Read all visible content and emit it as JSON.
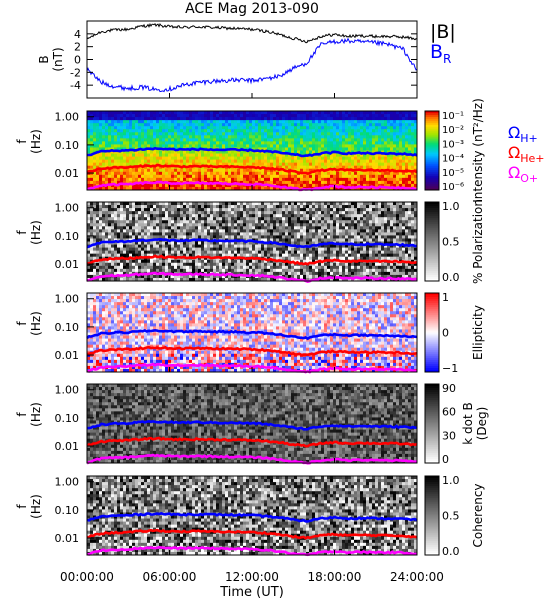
{
  "title": "ACE Mag 2013-090",
  "xaxis": {
    "label": "Time (UT)",
    "ticks": [
      "00:00:00",
      "06:00:00",
      "12:00:00",
      "18:00:00",
      "24:00:00"
    ],
    "range_hours": [
      0,
      24
    ]
  },
  "colors": {
    "bmag": "#000000",
    "br": "#0000ff",
    "h_plus": "#0000ff",
    "he_plus": "#ff0000",
    "o_plus": "#ff00ff"
  },
  "legend": {
    "bmag": "|B|",
    "br_main": "B",
    "br_sub": "R",
    "omega": "Ω",
    "h": "H+",
    "he": "He+",
    "o": "O+"
  },
  "chart_data": [
    {
      "type": "line",
      "panel": "field",
      "ylabel": "B",
      "yunit": "(nT)",
      "ylim": [
        -6,
        6
      ],
      "yticks": [
        "4",
        "2",
        "0",
        "-2",
        "-4"
      ],
      "x": [
        0,
        1,
        2,
        3,
        4,
        5,
        6,
        7,
        8,
        9,
        10,
        11,
        12,
        13,
        14,
        15,
        16,
        17,
        18,
        19,
        20,
        21,
        22,
        23,
        24
      ],
      "series": [
        {
          "name": "|B|",
          "values": [
            3.2,
            4.3,
            4.6,
            4.7,
            5.2,
            5.4,
            5.1,
            5.0,
            5.1,
            5.0,
            4.9,
            4.8,
            4.7,
            4.4,
            3.9,
            3.3,
            2.8,
            3.6,
            3.9,
            3.6,
            3.7,
            3.6,
            3.6,
            3.5,
            3.2
          ]
        },
        {
          "name": "B_R",
          "values": [
            -1.5,
            -3.5,
            -4.2,
            -4.5,
            -4.3,
            -4.7,
            -4.6,
            -4.0,
            -3.6,
            -3.4,
            -3.3,
            -3.2,
            -3.3,
            -3.0,
            -2.6,
            -1.4,
            -0.5,
            2.3,
            2.8,
            2.9,
            2.7,
            2.6,
            2.3,
            1.6,
            -1.8
          ]
        }
      ]
    },
    {
      "type": "heatmap",
      "panel": "intensity",
      "ylabel": "f",
      "yunit": "(Hz)",
      "yscale": "log",
      "yticks": [
        "1.00",
        "0.10",
        "0.01"
      ],
      "colorbar_label": "Intensity (nT²/Hz)",
      "colorbar_ticks": [
        "10⁻¹",
        "10⁻²",
        "10⁻³",
        "10⁻⁴",
        "10⁻⁵",
        "10⁻⁶"
      ],
      "colorbar_kind": "rainbow"
    },
    {
      "type": "heatmap",
      "panel": "polarization",
      "ylabel": "f",
      "yunit": "(Hz)",
      "yscale": "log",
      "yticks": [
        "1.00",
        "0.10",
        "0.01"
      ],
      "colorbar_label": "% Polarization",
      "colorbar_ticks": [
        "1.0",
        "0.5",
        "0.0"
      ],
      "colorbar_kind": "gray"
    },
    {
      "type": "heatmap",
      "panel": "ellipticity",
      "ylabel": "f",
      "yunit": "(Hz)",
      "yscale": "log",
      "yticks": [
        "1.00",
        "0.10",
        "0.01"
      ],
      "colorbar_label": "Ellipticity",
      "colorbar_ticks": [
        "1",
        "0",
        "−1"
      ],
      "colorbar_kind": "bwr"
    },
    {
      "type": "heatmap",
      "panel": "kdotb",
      "ylabel": "f",
      "yunit": "(Hz)",
      "yscale": "log",
      "yticks": [
        "1.00",
        "0.10",
        "0.01"
      ],
      "colorbar_label": "k dot B",
      "colorbar_unit": "(Deg)",
      "colorbar_ticks": [
        "90",
        "60",
        "30",
        "0"
      ],
      "colorbar_kind": "gray"
    },
    {
      "type": "heatmap",
      "panel": "coherency",
      "ylabel": "f",
      "yunit": "(Hz)",
      "yscale": "log",
      "yticks": [
        "1.00",
        "0.10",
        "0.01"
      ],
      "colorbar_label": "Coherency",
      "colorbar_ticks": [
        "1.0",
        "0.5",
        "0.0"
      ],
      "colorbar_kind": "gray"
    }
  ],
  "gyrofrequencies": {
    "x": [
      0,
      1,
      2,
      3,
      4,
      5,
      6,
      7,
      8,
      9,
      10,
      11,
      12,
      13,
      14,
      15,
      16,
      17,
      18,
      19,
      20,
      21,
      22,
      23,
      24
    ],
    "H+": [
      0.042,
      0.058,
      0.062,
      0.064,
      0.07,
      0.074,
      0.07,
      0.068,
      0.07,
      0.068,
      0.067,
      0.066,
      0.064,
      0.06,
      0.053,
      0.045,
      0.04,
      0.05,
      0.054,
      0.05,
      0.051,
      0.05,
      0.049,
      0.048,
      0.044
    ],
    "He+": [
      0.0105,
      0.0145,
      0.0155,
      0.016,
      0.0175,
      0.0185,
      0.0175,
      0.017,
      0.0175,
      0.017,
      0.0168,
      0.0165,
      0.016,
      0.015,
      0.0133,
      0.0113,
      0.01,
      0.0125,
      0.0135,
      0.0125,
      0.0128,
      0.0125,
      0.0123,
      0.012,
      0.011
    ],
    "O+": [
      0.0026,
      0.0036,
      0.0039,
      0.004,
      0.0044,
      0.0046,
      0.0044,
      0.0043,
      0.0044,
      0.0043,
      0.0042,
      0.0041,
      0.004,
      0.0038,
      0.0033,
      0.0028,
      0.0025,
      0.0031,
      0.0034,
      0.0031,
      0.0032,
      0.0031,
      0.0031,
      0.003,
      0.0028
    ]
  }
}
